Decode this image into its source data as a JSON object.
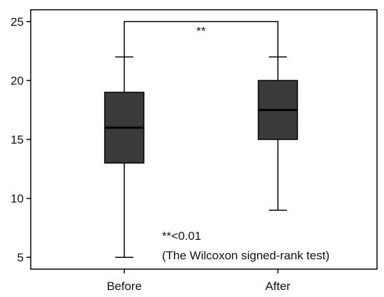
{
  "chart_data": {
    "type": "boxplot",
    "categories": [
      "Before",
      "After"
    ],
    "boxes": [
      {
        "category": "Before",
        "min": 5,
        "q1": 13,
        "median": 16,
        "q3": 19,
        "max": 22
      },
      {
        "category": "After",
        "min": 9,
        "q1": 15,
        "median": 17.5,
        "q3": 20,
        "max": 22
      }
    ],
    "ylim": [
      4,
      26
    ],
    "yticks": [
      5,
      10,
      15,
      20,
      25
    ],
    "grid": false,
    "box_color": "#3a3a3a",
    "significance": {
      "marker": "**",
      "between": [
        "Before",
        "After"
      ],
      "y": 25
    },
    "annotations": [
      "**<0.01",
      "(The Wilcoxon signed-rank test)"
    ]
  }
}
